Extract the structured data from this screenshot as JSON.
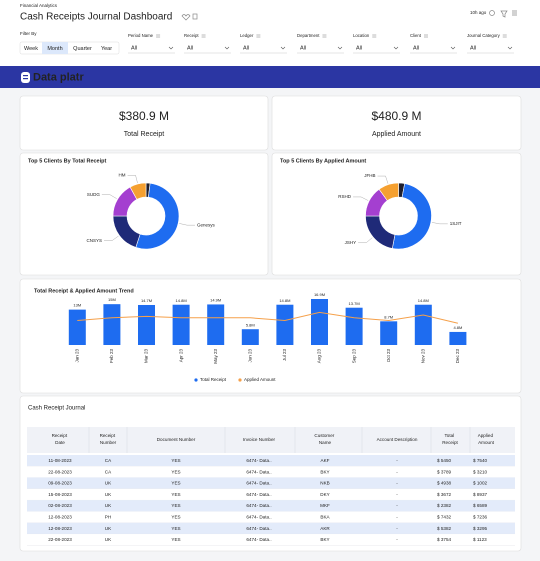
{
  "header": {
    "subtitle": "Financial Analytics",
    "title": "Cash Receipts Journal Dashboard",
    "updated": "10h ago"
  },
  "filters": {
    "label": "Filter By",
    "periods": [
      "Week",
      "Month",
      "Quarter",
      "Year"
    ],
    "selected": 1,
    "dropdowns": [
      {
        "label": "Period Name",
        "value": "All"
      },
      {
        "label": "Receipt",
        "value": "All"
      },
      {
        "label": "Ledger",
        "value": "All"
      },
      {
        "label": "Department",
        "value": "All"
      },
      {
        "label": "Location",
        "value": "All"
      },
      {
        "label": "Client",
        "value": "All"
      },
      {
        "label": "Journal Category",
        "value": "All"
      }
    ]
  },
  "brand": "Data platr",
  "kpis": [
    {
      "value": "$380.9 M",
      "label": "Total Receipt"
    },
    {
      "value": "$480.9 M",
      "label": "Applied Amount"
    }
  ],
  "chart_data": [
    {
      "type": "donut",
      "title": "Top 5 Clients By Total Receipt",
      "categories": [
        null,
        "Genesys",
        "CNSYS",
        "SUDG",
        "HM"
      ],
      "values": [
        2,
        53,
        20,
        17,
        8
      ],
      "colors": [
        "#1f1f2e",
        "#1e6cf0",
        "#1f2a78",
        "#a43fd0",
        "#f5a030"
      ]
    },
    {
      "type": "donut",
      "title": "Top 5 Clients By Applied Amount",
      "categories": [
        null,
        "1SJIT",
        "JSHY",
        "RSHD",
        "JFHB"
      ],
      "values": [
        3,
        50,
        22,
        15,
        10
      ],
      "colors": [
        "#1f1f2e",
        "#1e6cf0",
        "#1f2a78",
        "#a43fd0",
        "#f5a030"
      ]
    },
    {
      "type": "bar",
      "title": "Total Receipt &  Applied Amount Trend",
      "categories": [
        "Jan 23",
        "Feb 23",
        "Mar 23",
        "Apr 23",
        "May 23",
        "Jun 23",
        "Jul 23",
        "Aug 23",
        "Sep 23",
        "Oct 23",
        "Nov 23",
        "Dec 23"
      ],
      "series": [
        {
          "name": "Total Receipt",
          "color": "#1e6cf0",
          "values": [
            13,
            15,
            14.7,
            14.8,
            14.9,
            5.8,
            14.8,
            16.9,
            13.7,
            8.7,
            14.8,
            4.8
          ],
          "value_labels": [
            "13M",
            "15M",
            "14.7M",
            "14.8M",
            "14.9M",
            "5.8M",
            "14.8M",
            "16.9M",
            "13.7M",
            "8.7M",
            "14.8M",
            "4.8M"
          ]
        },
        {
          "name": "Applied Amount",
          "color": "#f5a04a",
          "type": "line",
          "values": [
            9,
            10,
            10.5,
            10,
            10,
            10,
            9,
            12,
            10,
            9,
            11,
            8
          ]
        }
      ]
    }
  ],
  "table": {
    "title": "Cash Receipt Journal",
    "columns": [
      "Receipt Date",
      "Receipt Number",
      "Document Number",
      "Invoice Number",
      "Customer Name",
      "Account  Description",
      "Total Receipt",
      "Applied Amount"
    ],
    "rows": [
      [
        "11-08-2023",
        "CA",
        "YES",
        "6474- Data..",
        "AKF",
        "-",
        "$ 5450",
        "$ 7540"
      ],
      [
        "22-08-2023",
        "CA",
        "YES",
        "6474- Data..",
        "BKY",
        "-",
        "$ 3789",
        "$ 3210"
      ],
      [
        "09-08-2023",
        "UK",
        "YES",
        "6474- Data..",
        "NKB",
        "-",
        "$ 4938",
        "$ 1002"
      ],
      [
        "15-08-2023",
        "UK",
        "YES",
        "6474- Data..",
        "DKY",
        "-",
        "$ 3672",
        "$ 8937"
      ],
      [
        "02-08-2023",
        "UK",
        "YES",
        "6474- Data..",
        "MKF",
        "-",
        "$ 2382",
        "$ 6589"
      ],
      [
        "12-08-2023",
        "PH",
        "YES",
        "6474- Data..",
        "BKA",
        "-",
        "$ 7432",
        "$ 7236"
      ],
      [
        "12-08-2023",
        "UK",
        "YES",
        "6474- Data..",
        "AKR",
        "-",
        "$ 5382",
        "$ 3295"
      ],
      [
        "22-08-2023",
        "UK",
        "YES",
        "6474- Data..",
        "BKY",
        "-",
        "$ 3754",
        "$ 1123"
      ]
    ]
  }
}
